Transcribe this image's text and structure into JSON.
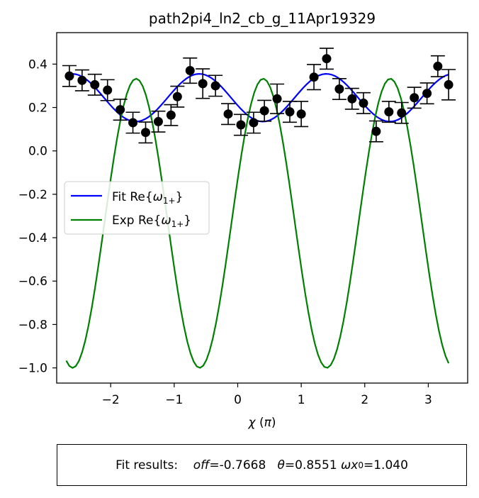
{
  "chart_data": {
    "type": "scatter",
    "title": "path2pi4_ln2_cb_g_11Apr19329",
    "xlabel_symbol": "χ",
    "xlabel_unit": "π",
    "ylabel": "",
    "xlim": [
      -2.85,
      3.62
    ],
    "ylim": [
      -1.07,
      0.545
    ],
    "xticks": [
      -2,
      -1,
      0,
      1,
      2,
      3
    ],
    "yticks": [
      0.4,
      0.2,
      0.0,
      -0.2,
      -0.4,
      -0.6,
      -0.8,
      -1.0
    ],
    "grid": false,
    "legend_position": "center-left",
    "points": {
      "color": "#000000",
      "x": [
        -2.65,
        -2.45,
        -2.25,
        -2.05,
        -1.85,
        -1.65,
        -1.45,
        -1.25,
        -1.05,
        -0.95,
        -0.75,
        -0.55,
        -0.35,
        -0.15,
        0.05,
        0.25,
        0.42,
        0.62,
        0.82,
        1.0,
        1.2,
        1.4,
        1.6,
        1.8,
        1.98,
        2.18,
        2.38,
        2.58,
        2.78,
        2.98,
        3.15,
        3.32
      ],
      "y": [
        0.345,
        0.325,
        0.305,
        0.28,
        0.19,
        0.13,
        0.085,
        0.135,
        0.165,
        0.25,
        0.37,
        0.31,
        0.3,
        0.17,
        0.12,
        0.13,
        0.185,
        0.24,
        0.18,
        0.17,
        0.34,
        0.425,
        0.285,
        0.24,
        0.22,
        0.09,
        0.18,
        0.175,
        0.245,
        0.265,
        0.39,
        0.305
      ],
      "yerr": [
        0.048,
        0.048,
        0.048,
        0.048,
        0.048,
        0.048,
        0.048,
        0.048,
        0.048,
        0.048,
        0.058,
        0.068,
        0.048,
        0.048,
        0.048,
        0.048,
        0.048,
        0.068,
        0.048,
        0.058,
        0.058,
        0.048,
        0.048,
        0.048,
        0.048,
        0.048,
        0.048,
        0.048,
        0.048,
        0.048,
        0.048,
        0.07
      ]
    },
    "series": [
      {
        "name_prefix": "Fit Re{",
        "name_symbol": "ω",
        "name_sub": "1+",
        "name_suffix": "}",
        "color": "#0000ff",
        "model": {
          "form": "cos",
          "offset": 0.245,
          "amplitude": 0.11,
          "omega": 3.14159,
          "phase": 1.9
        },
        "x_range": [
          -2.65,
          3.32
        ]
      },
      {
        "name_prefix": "Exp Re{",
        "name_symbol": "ω",
        "name_sub": "1+",
        "name_suffix": "}",
        "color": "#008000",
        "model": {
          "form": "cos",
          "offset": -0.3335,
          "amplitude": 0.6665,
          "omega": 3.14159,
          "phase": -1.26
        },
        "x_range": [
          -2.7,
          3.32
        ]
      }
    ]
  },
  "results": {
    "label": "Fit results:",
    "off_name": "off",
    "off_value": "=-0.7668",
    "theta_name": "θ",
    "theta_value": "=0.8551",
    "omega_name": "ωx",
    "omega_sub": "0",
    "omega_value": "=1.040"
  }
}
